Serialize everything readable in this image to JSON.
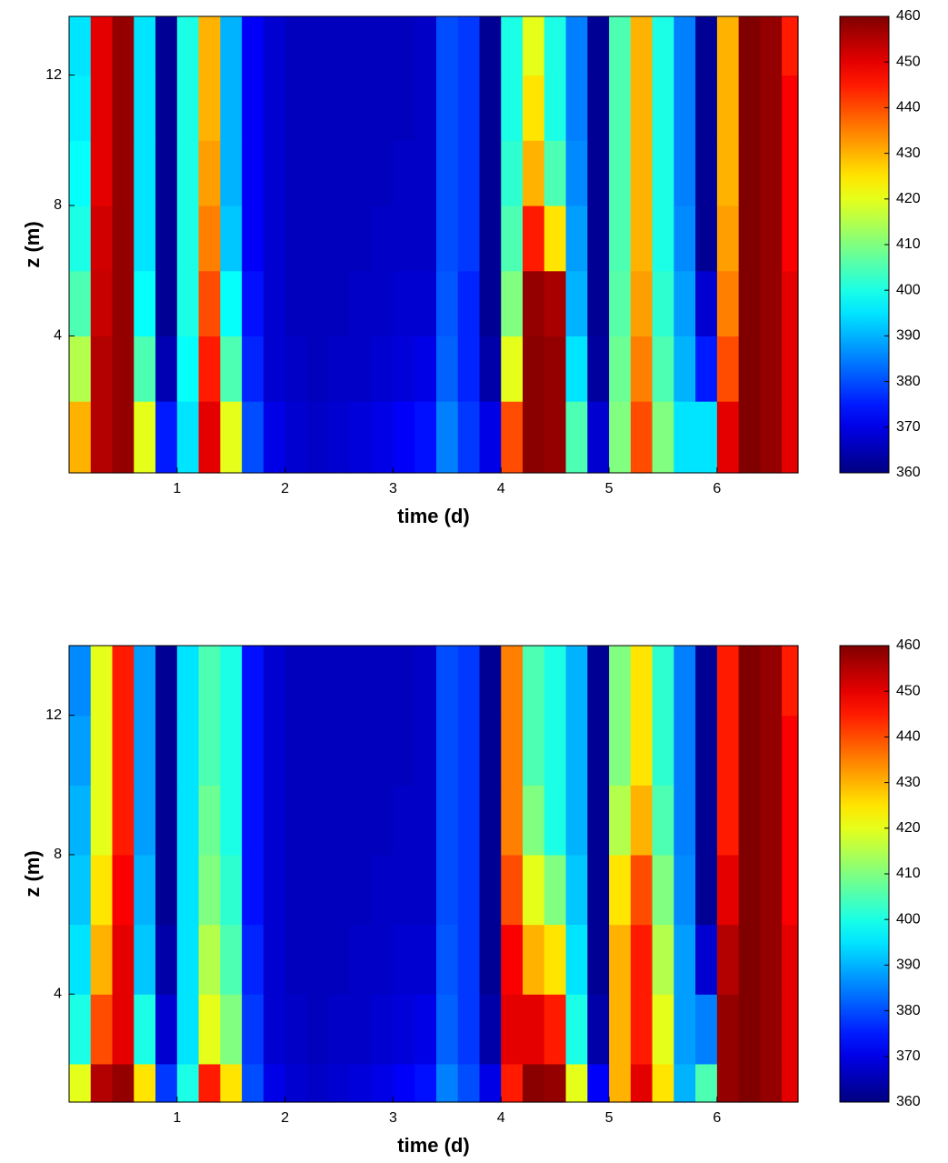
{
  "chart_data": [
    {
      "type": "heatmap",
      "xlabel": "time (d)",
      "ylabel": "z (m)",
      "colormap": "jet",
      "xlim": [
        0,
        6.75
      ],
      "ylim": [
        -0.2,
        13.8
      ],
      "xticks": [
        1,
        2,
        3,
        4,
        5,
        6
      ],
      "yticks": [
        4,
        8,
        12
      ],
      "clim": [
        360,
        460
      ],
      "colorbar_ticks": [
        360,
        370,
        380,
        390,
        400,
        410,
        420,
        430,
        440,
        450,
        460
      ],
      "xbins": [
        0,
        0.2,
        0.4,
        0.6,
        0.8,
        1.0,
        1.2,
        1.4,
        1.6,
        1.8,
        2.0,
        2.2,
        2.4,
        2.6,
        2.8,
        3.0,
        3.2,
        3.4,
        3.6,
        3.8,
        4.0,
        4.2,
        4.4,
        4.6,
        4.8,
        5.0,
        5.2,
        5.4,
        5.6,
        5.8,
        6.0,
        6.2,
        6.4,
        6.6,
        6.75
      ],
      "ybins": [
        -0.2,
        2,
        4,
        6,
        8,
        10,
        12,
        13.8
      ],
      "z": [
        [
          430,
          455,
          458,
          420,
          375,
          395,
          450,
          420,
          380,
          370,
          368,
          367,
          368,
          369,
          370,
          372,
          374,
          385,
          378,
          370,
          440,
          459,
          458,
          405,
          368,
          410,
          440,
          410,
          395,
          395,
          450,
          460,
          458,
          450
        ],
        [
          415,
          455,
          458,
          405,
          365,
          398,
          445,
          405,
          376,
          368,
          367,
          366,
          367,
          367,
          368,
          369,
          370,
          382,
          376,
          364,
          420,
          459,
          458,
          395,
          363,
          408,
          435,
          405,
          390,
          375,
          440,
          460,
          458,
          450
        ],
        [
          405,
          453,
          458,
          398,
          362,
          400,
          440,
          398,
          374,
          368,
          366,
          366,
          366,
          367,
          367,
          368,
          368,
          381,
          376,
          362,
          410,
          458,
          456,
          390,
          362,
          406,
          432,
          402,
          388,
          368,
          435,
          460,
          458,
          450
        ],
        [
          400,
          452,
          458,
          395,
          362,
          400,
          435,
          392,
          372,
          368,
          366,
          366,
          366,
          366,
          367,
          367,
          367,
          380,
          378,
          362,
          405,
          445,
          425,
          388,
          362,
          405,
          430,
          400,
          386,
          362,
          432,
          460,
          458,
          448
        ],
        [
          398,
          450,
          458,
          395,
          362,
          400,
          432,
          390,
          372,
          368,
          366,
          366,
          366,
          366,
          366,
          367,
          367,
          380,
          378,
          362,
          402,
          430,
          405,
          386,
          362,
          405,
          430,
          400,
          385,
          362,
          430,
          460,
          458,
          448
        ],
        [
          396,
          450,
          458,
          395,
          362,
          400,
          430,
          390,
          372,
          368,
          366,
          366,
          366,
          366,
          366,
          366,
          367,
          380,
          378,
          362,
          400,
          425,
          400,
          385,
          362,
          405,
          430,
          400,
          385,
          362,
          430,
          460,
          458,
          448
        ],
        [
          395,
          450,
          458,
          395,
          362,
          400,
          430,
          390,
          372,
          368,
          366,
          366,
          366,
          366,
          366,
          366,
          367,
          380,
          378,
          362,
          400,
          420,
          400,
          385,
          362,
          405,
          430,
          400,
          385,
          362,
          430,
          460,
          458,
          445
        ]
      ]
    },
    {
      "type": "heatmap",
      "xlabel": "time (d)",
      "ylabel": "z (m)",
      "colormap": "jet",
      "xlim": [
        0,
        6.75
      ],
      "ylim": [
        0.9,
        14
      ],
      "xticks": [
        1,
        2,
        3,
        4,
        5,
        6
      ],
      "yticks": [
        4,
        8,
        12
      ],
      "clim": [
        360,
        460
      ],
      "colorbar_ticks": [
        360,
        370,
        380,
        390,
        400,
        410,
        420,
        430,
        440,
        450,
        460
      ],
      "xbins": [
        0,
        0.2,
        0.4,
        0.6,
        0.8,
        1.0,
        1.2,
        1.4,
        1.6,
        1.8,
        2.0,
        2.2,
        2.4,
        2.6,
        2.8,
        3.0,
        3.2,
        3.4,
        3.6,
        3.8,
        4.0,
        4.2,
        4.4,
        4.6,
        4.8,
        5.0,
        5.2,
        5.4,
        5.6,
        5.8,
        6.0,
        6.2,
        6.4,
        6.6,
        6.75
      ],
      "ybins": [
        0.9,
        2,
        4,
        6,
        8,
        10,
        12,
        14
      ],
      "z": [
        [
          420,
          455,
          458,
          425,
          378,
          400,
          445,
          425,
          380,
          370,
          368,
          367,
          368,
          369,
          370,
          372,
          374,
          385,
          380,
          370,
          445,
          459,
          458,
          420,
          372,
          430,
          450,
          425,
          390,
          405,
          458,
          460,
          458,
          450
        ],
        [
          400,
          440,
          450,
          400,
          368,
          395,
          420,
          410,
          378,
          368,
          367,
          366,
          367,
          367,
          368,
          369,
          370,
          382,
          378,
          364,
          450,
          450,
          445,
          400,
          364,
          430,
          445,
          420,
          388,
          385,
          458,
          460,
          458,
          450
        ],
        [
          395,
          430,
          450,
          392,
          364,
          395,
          415,
          405,
          376,
          368,
          366,
          366,
          366,
          367,
          367,
          368,
          368,
          381,
          378,
          362,
          448,
          430,
          425,
          395,
          362,
          430,
          445,
          415,
          388,
          368,
          455,
          460,
          458,
          450
        ],
        [
          392,
          425,
          448,
          390,
          362,
          395,
          410,
          402,
          374,
          368,
          366,
          366,
          366,
          366,
          367,
          367,
          367,
          380,
          378,
          362,
          440,
          420,
          410,
          392,
          362,
          425,
          440,
          410,
          386,
          362,
          450,
          460,
          458,
          448
        ],
        [
          390,
          420,
          445,
          388,
          362,
          395,
          408,
          400,
          374,
          368,
          366,
          366,
          366,
          366,
          366,
          367,
          367,
          380,
          378,
          362,
          435,
          410,
          400,
          390,
          362,
          415,
          430,
          405,
          385,
          362,
          445,
          460,
          458,
          448
        ],
        [
          388,
          420,
          445,
          388,
          362,
          395,
          405,
          400,
          374,
          368,
          366,
          366,
          366,
          366,
          366,
          366,
          367,
          380,
          378,
          362,
          435,
          405,
          400,
          390,
          362,
          410,
          425,
          402,
          385,
          362,
          445,
          460,
          458,
          448
        ],
        [
          386,
          420,
          445,
          388,
          362,
          395,
          405,
          400,
          374,
          368,
          366,
          366,
          366,
          366,
          366,
          366,
          367,
          380,
          378,
          362,
          435,
          405,
          400,
          390,
          362,
          410,
          425,
          402,
          385,
          362,
          445,
          460,
          458,
          445
        ]
      ]
    }
  ]
}
